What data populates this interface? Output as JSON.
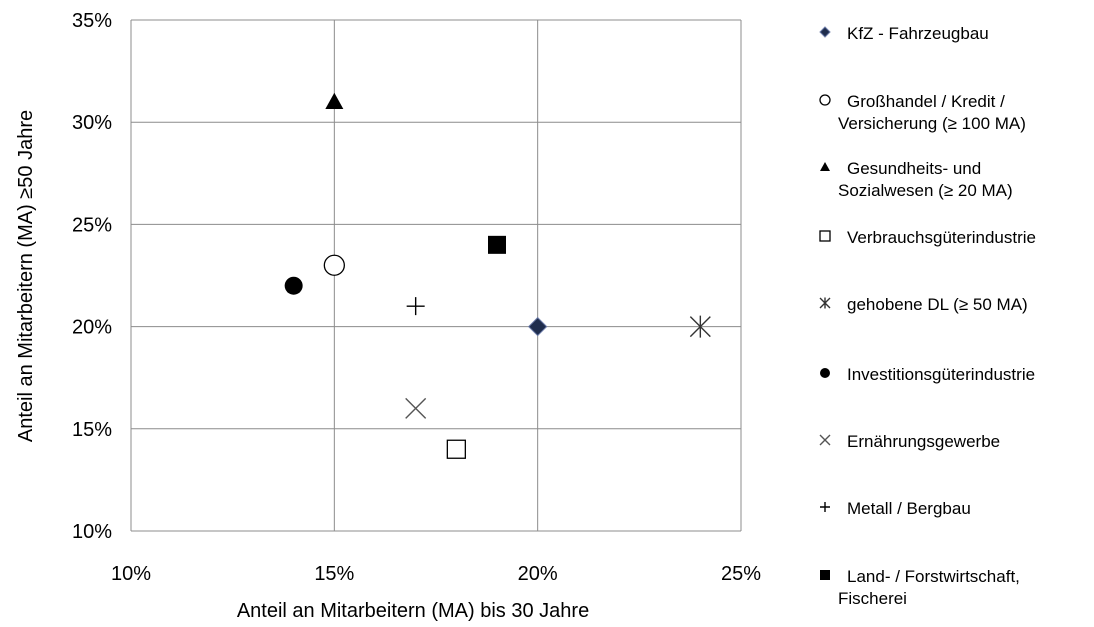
{
  "chart_data": {
    "type": "scatter",
    "title": "",
    "xlabel": "Anteil an Mitarbeitern (MA) bis 30 Jahre",
    "ylabel": "Anteil an Mitarbeitern (MA) ≥50 Jahre",
    "xlim": [
      0.1,
      0.25
    ],
    "ylim": [
      0.1,
      0.35
    ],
    "x_ticks": [
      {
        "value": 0.1,
        "label": "10%"
      },
      {
        "value": 0.15,
        "label": "15%"
      },
      {
        "value": 0.2,
        "label": "20%"
      },
      {
        "value": 0.25,
        "label": "25%"
      }
    ],
    "y_ticks": [
      {
        "value": 0.1,
        "label": "10%"
      },
      {
        "value": 0.15,
        "label": "15%"
      },
      {
        "value": 0.2,
        "label": "20%"
      },
      {
        "value": 0.25,
        "label": "25%"
      },
      {
        "value": 0.3,
        "label": "30%"
      },
      {
        "value": 0.35,
        "label": "35%"
      }
    ],
    "grid": true,
    "legend_position": "right",
    "series": [
      {
        "name": "KfZ - Fahrzeugbau",
        "marker": "diamond",
        "color": "#1f2d4d",
        "points": [
          {
            "x": 0.2,
            "y": 0.2
          }
        ]
      },
      {
        "name": "Großhandel / Kredit / Versicherung (≥ 100 MA)",
        "marker": "circle-open",
        "color": "#000000",
        "points": [
          {
            "x": 0.15,
            "y": 0.23
          }
        ]
      },
      {
        "name": "Gesundheits- und Sozialwesen (≥ 20 MA)",
        "marker": "triangle",
        "color": "#000000",
        "points": [
          {
            "x": 0.15,
            "y": 0.31
          }
        ]
      },
      {
        "name": "Verbrauchsgüterindustrie",
        "marker": "square-open",
        "color": "#000000",
        "points": [
          {
            "x": 0.18,
            "y": 0.14
          }
        ]
      },
      {
        "name": "gehobene DL (≥ 50 MA)",
        "marker": "asterisk",
        "color": "#333333",
        "points": [
          {
            "x": 0.24,
            "y": 0.2
          }
        ]
      },
      {
        "name": "Investitionsgüterindustrie",
        "marker": "circle",
        "color": "#000000",
        "points": [
          {
            "x": 0.14,
            "y": 0.22
          }
        ]
      },
      {
        "name": "Ernährungsgewerbe",
        "marker": "x",
        "color": "#555555",
        "points": [
          {
            "x": 0.17,
            "y": 0.16
          }
        ]
      },
      {
        "name": "Metall / Bergbau",
        "marker": "plus",
        "color": "#000000",
        "points": [
          {
            "x": 0.17,
            "y": 0.21
          }
        ]
      },
      {
        "name": "Land- / Forstwirtschaft, Fischerei",
        "marker": "square",
        "color": "#000000",
        "points": [
          {
            "x": 0.19,
            "y": 0.24
          }
        ]
      }
    ]
  },
  "legend": {
    "items": [
      {
        "lines": [
          "KfZ - Fahrzeugbau"
        ]
      },
      {
        "lines": [
          "Großhandel / Kredit /",
          "Versicherung (≥ 100 MA)"
        ]
      },
      {
        "lines": [
          "Gesundheits- und",
          "Sozialwesen (≥ 20 MA)"
        ]
      },
      {
        "lines": [
          "Verbrauchsgüterindustrie"
        ]
      },
      {
        "lines": [
          "gehobene DL (≥ 50 MA)"
        ]
      },
      {
        "lines": [
          "Investitionsgüterindustrie"
        ]
      },
      {
        "lines": [
          "Ernährungsgewerbe"
        ]
      },
      {
        "lines": [
          "Metall / Bergbau"
        ]
      },
      {
        "lines": [
          "Land- / Forstwirtschaft,",
          "Fischerei"
        ]
      }
    ]
  }
}
